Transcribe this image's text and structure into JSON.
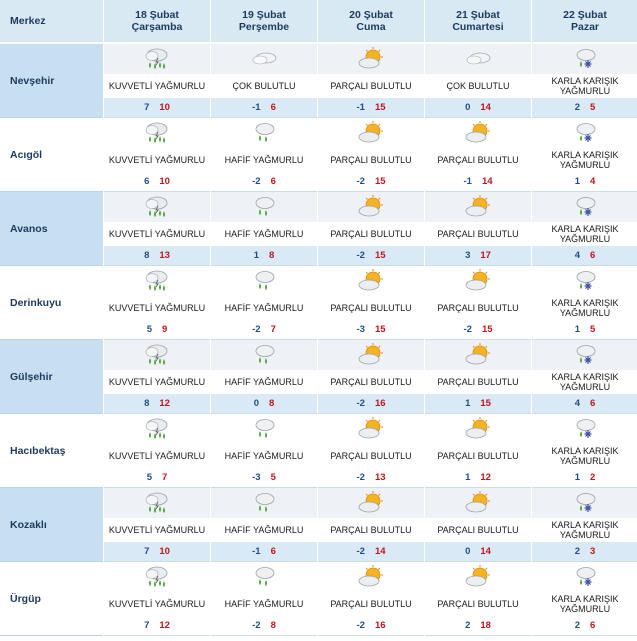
{
  "header": {
    "corner": "Merkez",
    "days": [
      {
        "date": "18 Şubat",
        "weekday": "Çarşamba"
      },
      {
        "date": "19 Şubat",
        "weekday": "Perşembe"
      },
      {
        "date": "20 Şubat",
        "weekday": "Cuma"
      },
      {
        "date": "21 Şubat",
        "weekday": "Cumartesi"
      },
      {
        "date": "22 Şubat",
        "weekday": "Pazar"
      }
    ]
  },
  "conditions": {
    "heavy_rain": {
      "label": "KUVVETLİ YAĞMURLU",
      "icon": "heavy-rain-icon"
    },
    "light_rain": {
      "label": "HAFİF YAĞMURLU",
      "icon": "light-rain-icon"
    },
    "cloudy": {
      "label": "ÇOK BULUTLU",
      "icon": "cloudy-icon"
    },
    "partly": {
      "label": "PARÇALI BULUTLU",
      "icon": "partly-cloudy-icon"
    },
    "sleet": {
      "label": "KARLA KARIŞIK YAĞMURLU",
      "icon": "sleet-icon"
    }
  },
  "colors": {
    "min_temp": "#1f4e8c",
    "max_temp": "#c0161b",
    "header_bg": "#d8e9f4",
    "row_tint": "#c7dff0"
  },
  "rows": [
    {
      "city": "Nevşehir",
      "days": [
        {
          "cond": "heavy_rain",
          "label": "KUVVETLİ YAĞMURLU",
          "min": "7",
          "max": "10"
        },
        {
          "cond": "cloudy",
          "label": "ÇOK BULUTLU",
          "min": "-1",
          "max": "6"
        },
        {
          "cond": "partly",
          "label": "PARÇALI BULUTLU",
          "min": "-1",
          "max": "15"
        },
        {
          "cond": "cloudy",
          "label": "ÇOK BULUTLU",
          "min": "0",
          "max": "14"
        },
        {
          "cond": "sleet",
          "label": "KARLA KARIŞIK YAĞMURLU",
          "min": "2",
          "max": "5"
        }
      ]
    },
    {
      "city": "Acıgöl",
      "days": [
        {
          "cond": "heavy_rain",
          "label": "KUVVETLİ YAĞMURLU",
          "min": "6",
          "max": "10"
        },
        {
          "cond": "light_rain",
          "label": "HAFİF YAĞMURLU",
          "min": "-2",
          "max": "6"
        },
        {
          "cond": "partly",
          "label": "PARÇALI BULUTLU",
          "min": "-2",
          "max": "15"
        },
        {
          "cond": "partly",
          "label": "PARÇALI BULUTLU",
          "min": "-1",
          "max": "14"
        },
        {
          "cond": "sleet",
          "label": "KARLA KARIŞIK YAĞMURLU",
          "min": "1",
          "max": "4"
        }
      ]
    },
    {
      "city": "Avanos",
      "days": [
        {
          "cond": "heavy_rain",
          "label": "KUVVETLİ YAĞMURLU",
          "min": "8",
          "max": "13"
        },
        {
          "cond": "light_rain",
          "label": "HAFİF YAĞMURLU",
          "min": "1",
          "max": "8"
        },
        {
          "cond": "partly",
          "label": "PARÇALI BULUTLU",
          "min": "-2",
          "max": "15"
        },
        {
          "cond": "partly",
          "label": "PARÇALI BULUTLU",
          "min": "3",
          "max": "17"
        },
        {
          "cond": "sleet",
          "label": "KARLA KARIŞIK YAĞMURLU",
          "min": "4",
          "max": "6"
        }
      ]
    },
    {
      "city": "Derinkuyu",
      "days": [
        {
          "cond": "heavy_rain",
          "label": "KUVVETLİ YAĞMURLU",
          "min": "5",
          "max": "9"
        },
        {
          "cond": "light_rain",
          "label": "HAFİF YAĞMURLU",
          "min": "-2",
          "max": "7"
        },
        {
          "cond": "partly",
          "label": "PARÇALI BULUTLU",
          "min": "-3",
          "max": "15"
        },
        {
          "cond": "partly",
          "label": "PARÇALI BULUTLU",
          "min": "-2",
          "max": "15"
        },
        {
          "cond": "sleet",
          "label": "KARLA KARIŞIK YAĞMURLU",
          "min": "1",
          "max": "5"
        }
      ]
    },
    {
      "city": "Gülşehir",
      "days": [
        {
          "cond": "heavy_rain",
          "label": "KUVVETLİ YAĞMURLU",
          "min": "8",
          "max": "12"
        },
        {
          "cond": "light_rain",
          "label": "HAFİF YAĞMURLU",
          "min": "0",
          "max": "8"
        },
        {
          "cond": "partly",
          "label": "PARÇALI BULUTLU",
          "min": "-2",
          "max": "16"
        },
        {
          "cond": "partly",
          "label": "PARÇALI BULUTLU",
          "min": "1",
          "max": "15"
        },
        {
          "cond": "sleet",
          "label": "KARLA KARIŞIK YAĞMURLU",
          "min": "4",
          "max": "6"
        }
      ]
    },
    {
      "city": "Hacıbektaş",
      "days": [
        {
          "cond": "heavy_rain",
          "label": "KUVVETLİ YAĞMURLU",
          "min": "5",
          "max": "7"
        },
        {
          "cond": "light_rain",
          "label": "HAFİF YAĞMURLU",
          "min": "-3",
          "max": "5"
        },
        {
          "cond": "partly",
          "label": "PARÇALI BULUTLU",
          "min": "-2",
          "max": "13"
        },
        {
          "cond": "partly",
          "label": "PARÇALI BULUTLU",
          "min": "1",
          "max": "12"
        },
        {
          "cond": "sleet",
          "label": "KARLA KARIŞIK YAĞMURLU",
          "min": "1",
          "max": "2"
        }
      ]
    },
    {
      "city": "Kozaklı",
      "days": [
        {
          "cond": "heavy_rain",
          "label": "KUVVETLİ YAĞMURLU",
          "min": "7",
          "max": "10"
        },
        {
          "cond": "light_rain",
          "label": "HAFİF YAĞMURLU",
          "min": "-1",
          "max": "6"
        },
        {
          "cond": "partly",
          "label": "PARÇALI BULUTLU",
          "min": "-2",
          "max": "14"
        },
        {
          "cond": "partly",
          "label": "PARÇALI BULUTLU",
          "min": "0",
          "max": "14"
        },
        {
          "cond": "sleet",
          "label": "KARLA KARIŞIK YAĞMURLU",
          "min": "2",
          "max": "3"
        }
      ]
    },
    {
      "city": "Ürgüp",
      "days": [
        {
          "cond": "heavy_rain",
          "label": "KUVVETLİ YAĞMURLU",
          "min": "7",
          "max": "12"
        },
        {
          "cond": "light_rain",
          "label": "HAFİF YAĞMURLU",
          "min": "-2",
          "max": "8"
        },
        {
          "cond": "partly",
          "label": "PARÇALI BULUTLU",
          "min": "-2",
          "max": "16"
        },
        {
          "cond": "partly",
          "label": "PARÇALI BULUTLU",
          "min": "2",
          "max": "18"
        },
        {
          "cond": "sleet",
          "label": "KARLA KARIŞIK YAĞMURLU",
          "min": "2",
          "max": "6"
        }
      ]
    }
  ]
}
